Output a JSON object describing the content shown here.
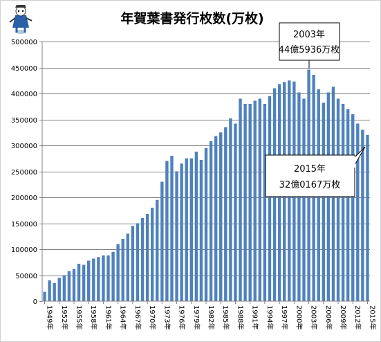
{
  "chart_data": {
    "type": "bar",
    "title": "年賀葉書発行枚数(万枚)",
    "xlabel": "",
    "ylabel": "",
    "ylim": [
      0,
      500000
    ],
    "yticks": [
      "0",
      "50000",
      "100000",
      "150000",
      "200000",
      "250000",
      "300000",
      "350000",
      "400000",
      "450000",
      "500000"
    ],
    "xtick_labels": [
      "1949年",
      "1952年",
      "1955年",
      "1958年",
      "1961年",
      "1964年",
      "1967年",
      "1970年",
      "1973年",
      "1976年",
      "1979年",
      "1982年",
      "1985年",
      "1988年",
      "1991年",
      "1994年",
      "1997年",
      "2000年",
      "2003年",
      "2006年",
      "2009年",
      "2012年",
      "2015年"
    ],
    "bar_color": "#4f81bd",
    "grid": true,
    "categories": [
      "1949",
      "1950",
      "1951",
      "1952",
      "1953",
      "1954",
      "1955",
      "1956",
      "1957",
      "1958",
      "1959",
      "1960",
      "1961",
      "1962",
      "1963",
      "1964",
      "1965",
      "1966",
      "1967",
      "1968",
      "1969",
      "1970",
      "1971",
      "1972",
      "1973",
      "1974",
      "1975",
      "1976",
      "1977",
      "1978",
      "1979",
      "1980",
      "1981",
      "1982",
      "1983",
      "1984",
      "1985",
      "1986",
      "1987",
      "1988",
      "1989",
      "1990",
      "1991",
      "1992",
      "1993",
      "1994",
      "1995",
      "1996",
      "1997",
      "1998",
      "1999",
      "2000",
      "2001",
      "2002",
      "2003",
      "2004",
      "2005",
      "2006",
      "2007",
      "2008",
      "2009",
      "2010",
      "2011",
      "2012",
      "2013",
      "2014",
      "2015"
    ],
    "values": [
      18000,
      40000,
      35000,
      45000,
      50000,
      58000,
      62000,
      72000,
      70000,
      78000,
      82000,
      85000,
      88000,
      88000,
      95000,
      110000,
      120000,
      130000,
      145000,
      150000,
      160000,
      168000,
      180000,
      195000,
      230000,
      270000,
      280000,
      250000,
      265000,
      275000,
      275000,
      288000,
      272000,
      295000,
      308000,
      318000,
      325000,
      335000,
      352000,
      342000,
      390000,
      380000,
      380000,
      386000,
      390000,
      380000,
      395000,
      410000,
      418000,
      422000,
      425000,
      423000,
      402000,
      390000,
      445936,
      436000,
      408000,
      382000,
      402000,
      413000,
      390000,
      380000,
      370000,
      360000,
      342000,
      330000,
      320167
    ],
    "annotations": [
      {
        "line1": "2003年",
        "line2": "44億5936万枚"
      },
      {
        "line1": "2015年",
        "line2": "32億0167万枚"
      }
    ]
  },
  "logo": {
    "name": "mascot"
  }
}
